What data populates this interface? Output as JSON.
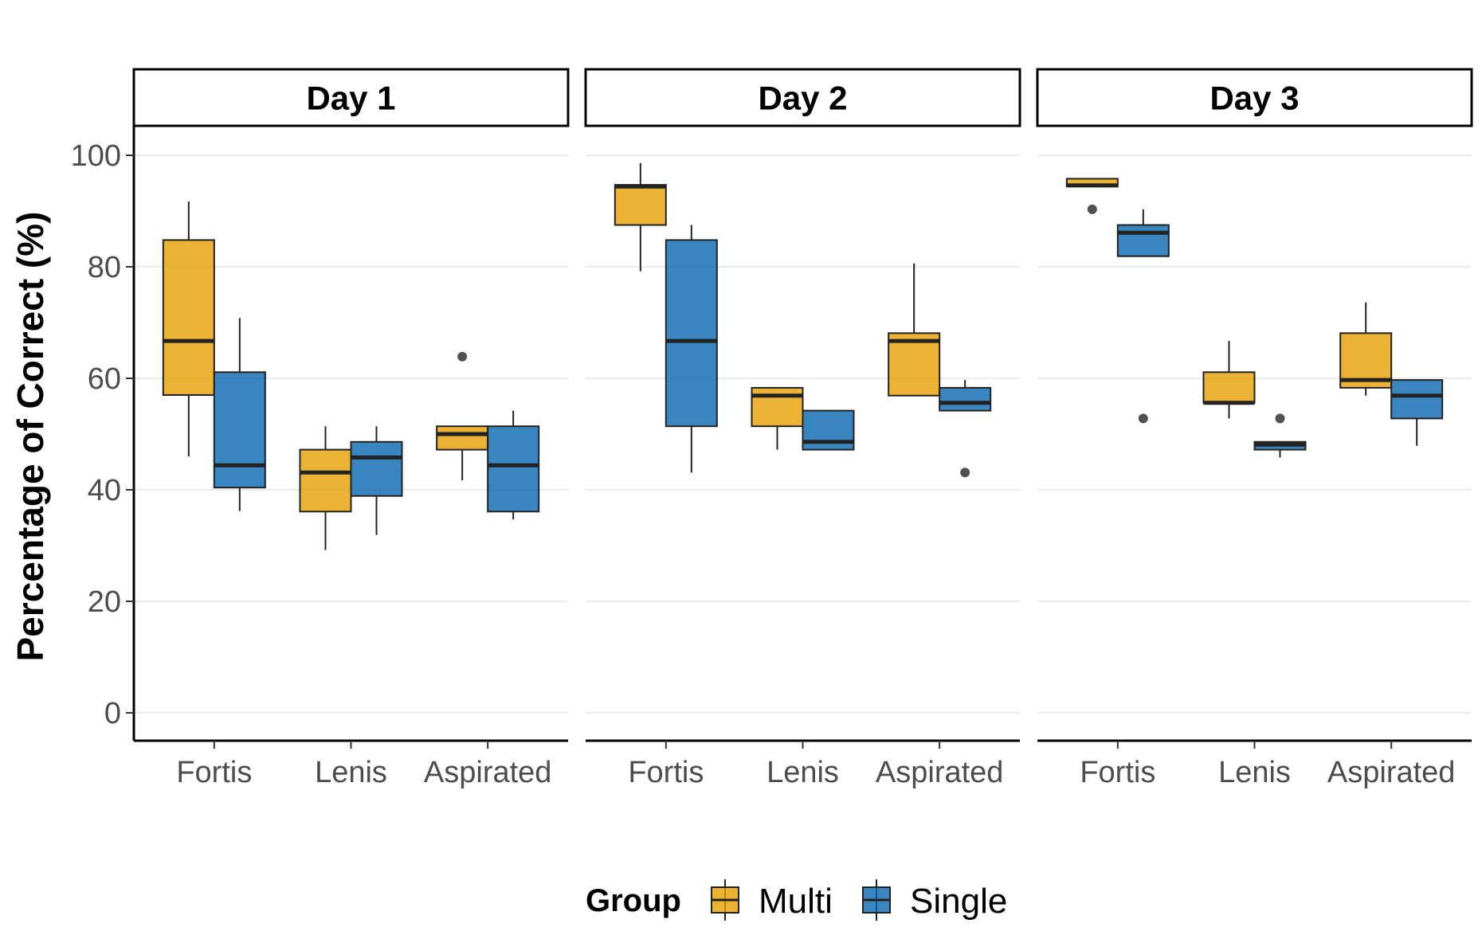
{
  "chart_data": {
    "type": "boxplot",
    "ylabel": "Percentage of Correct (%)",
    "ylim": [
      -5,
      105
    ],
    "yticks": [
      "0",
      "20",
      "40",
      "60",
      "80",
      "100"
    ],
    "categories": [
      "Fortis",
      "Lenis",
      "Aspirated"
    ],
    "legend": {
      "title": "Group",
      "position": "bottom",
      "entries": [
        {
          "name": "Multi",
          "color": "#E69F00"
        },
        {
          "name": "Single",
          "color": "#0868B0"
        }
      ]
    },
    "grid": "horizontal major lines",
    "panels": [
      {
        "title": "Day 1",
        "groups": [
          {
            "category": "Fortis",
            "series": "Multi",
            "lower_whisker": 46,
            "q1": 57,
            "median": 66.7,
            "q3": 84.8,
            "upper_whisker": 91.7,
            "outliers": []
          },
          {
            "category": "Fortis",
            "series": "Single",
            "lower_whisker": 36.2,
            "q1": 40.4,
            "median": 44.4,
            "q3": 61.1,
            "upper_whisker": 70.8,
            "outliers": []
          },
          {
            "category": "Lenis",
            "series": "Multi",
            "lower_whisker": 29.2,
            "q1": 36.1,
            "median": 43.1,
            "q3": 47.2,
            "upper_whisker": 51.4,
            "outliers": []
          },
          {
            "category": "Lenis",
            "series": "Single",
            "lower_whisker": 31.9,
            "q1": 38.9,
            "median": 45.8,
            "q3": 48.6,
            "upper_whisker": 51.4,
            "outliers": []
          },
          {
            "category": "Aspirated",
            "series": "Multi",
            "lower_whisker": 41.7,
            "q1": 47.2,
            "median": 50,
            "q3": 51.4,
            "upper_whisker": 51.4,
            "outliers": [
              63.9
            ]
          },
          {
            "category": "Aspirated",
            "series": "Single",
            "lower_whisker": 34.7,
            "q1": 36.1,
            "median": 44.4,
            "q3": 51.4,
            "upper_whisker": 54.2,
            "outliers": []
          }
        ]
      },
      {
        "title": "Day 2",
        "groups": [
          {
            "category": "Fortis",
            "series": "Multi",
            "lower_whisker": 79.2,
            "q1": 87.5,
            "median": 94.4,
            "q3": 94.7,
            "upper_whisker": 98.6,
            "outliers": []
          },
          {
            "category": "Fortis",
            "series": "Single",
            "lower_whisker": 43.1,
            "q1": 51.4,
            "median": 66.7,
            "q3": 84.8,
            "upper_whisker": 87.5,
            "outliers": []
          },
          {
            "category": "Lenis",
            "series": "Multi",
            "lower_whisker": 47.2,
            "q1": 51.4,
            "median": 56.9,
            "q3": 58.3,
            "upper_whisker": 58.3,
            "outliers": []
          },
          {
            "category": "Lenis",
            "series": "Single",
            "lower_whisker": 47.2,
            "q1": 47.2,
            "median": 48.6,
            "q3": 54.2,
            "upper_whisker": 54.2,
            "outliers": []
          },
          {
            "category": "Aspirated",
            "series": "Multi",
            "lower_whisker": 56.9,
            "q1": 56.9,
            "median": 66.7,
            "q3": 68.1,
            "upper_whisker": 80.6,
            "outliers": []
          },
          {
            "category": "Aspirated",
            "series": "Single",
            "lower_whisker": 54.2,
            "q1": 54.2,
            "median": 55.6,
            "q3": 58.3,
            "upper_whisker": 59.7,
            "outliers": [
              43.1
            ]
          }
        ]
      },
      {
        "title": "Day 3",
        "groups": [
          {
            "category": "Fortis",
            "series": "Multi",
            "lower_whisker": 94.4,
            "q1": 94.4,
            "median": 94.6,
            "q3": 95.8,
            "upper_whisker": 95.8,
            "outliers": [
              90.3
            ]
          },
          {
            "category": "Fortis",
            "series": "Single",
            "lower_whisker": 81.9,
            "q1": 81.9,
            "median": 86.1,
            "q3": 87.5,
            "upper_whisker": 90.3,
            "outliers": [
              52.8
            ]
          },
          {
            "category": "Lenis",
            "series": "Multi",
            "lower_whisker": 52.8,
            "q1": 55.6,
            "median": 55.6,
            "q3": 61.1,
            "upper_whisker": 66.7,
            "outliers": []
          },
          {
            "category": "Lenis",
            "series": "Single",
            "lower_whisker": 45.8,
            "q1": 47.2,
            "median": 48.1,
            "q3": 48.6,
            "upper_whisker": 48.6,
            "outliers": [
              52.8
            ]
          },
          {
            "category": "Aspirated",
            "series": "Multi",
            "lower_whisker": 56.9,
            "q1": 58.3,
            "median": 59.7,
            "q3": 68.1,
            "upper_whisker": 73.6,
            "outliers": []
          },
          {
            "category": "Aspirated",
            "series": "Single",
            "lower_whisker": 47.9,
            "q1": 52.8,
            "median": 56.9,
            "q3": 59.7,
            "upper_whisker": 59.7,
            "outliers": []
          }
        ]
      }
    ]
  }
}
